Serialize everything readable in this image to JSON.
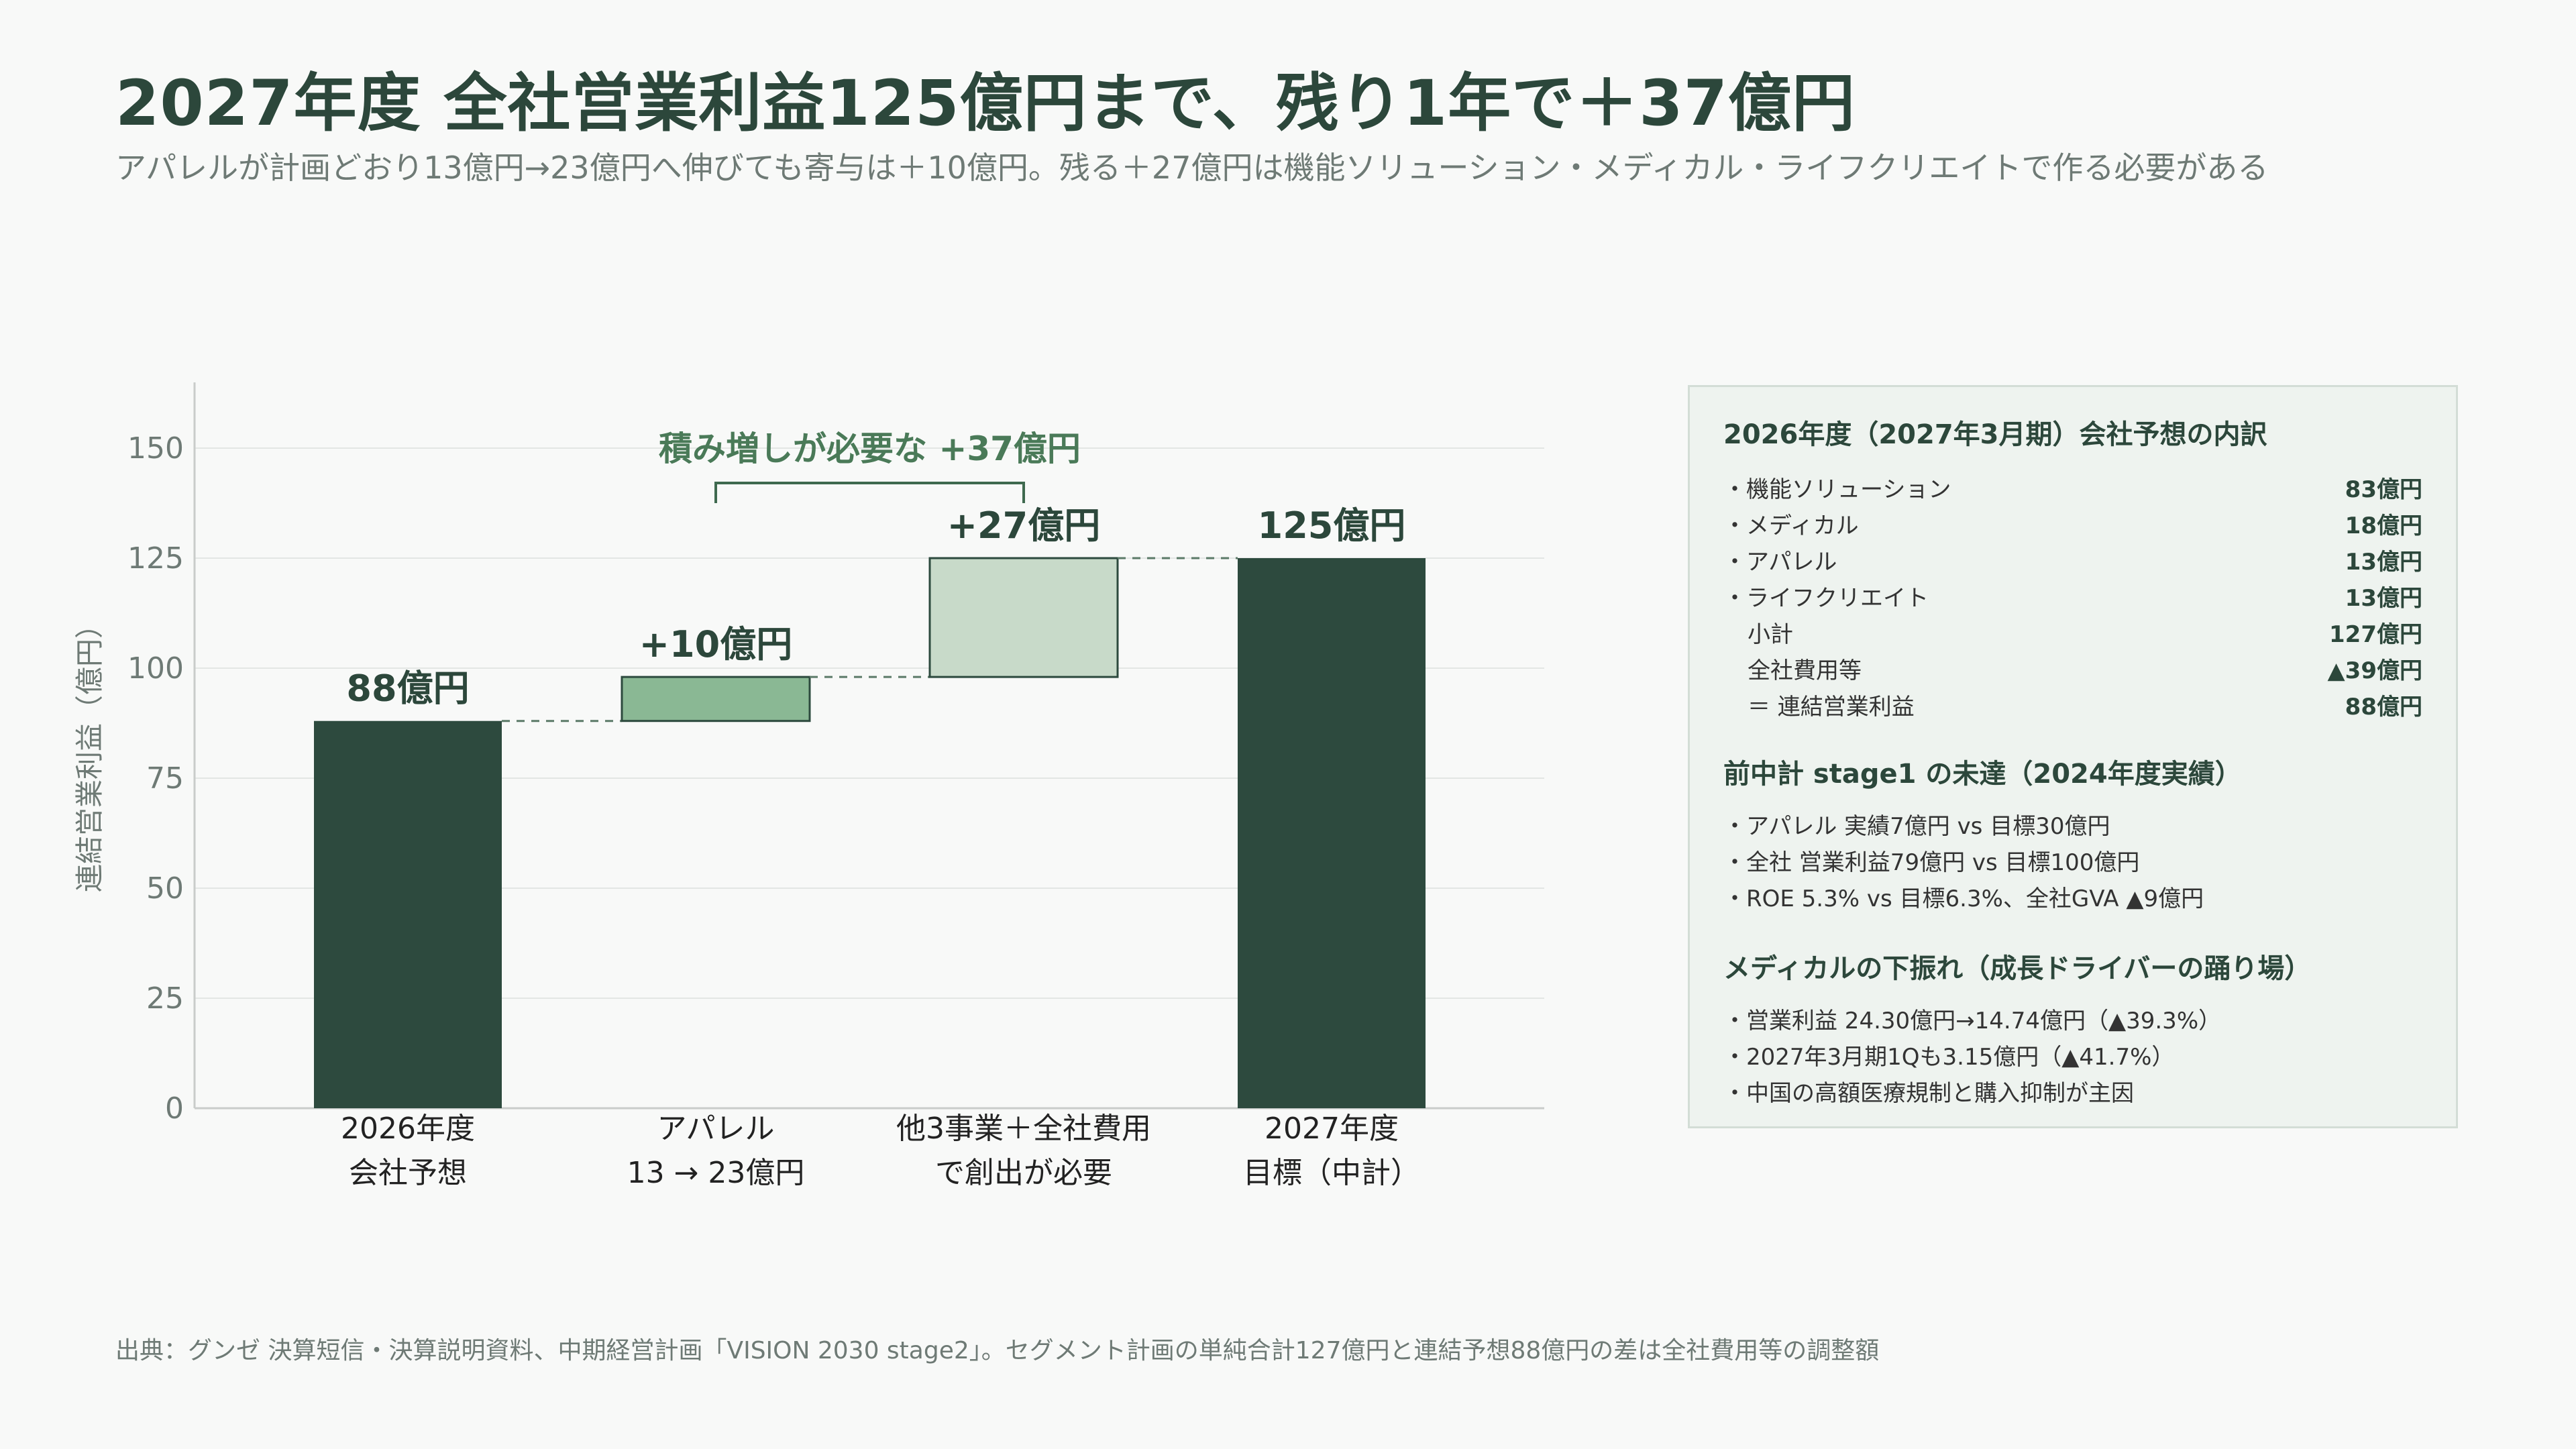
{
  "title": "2027年度 全社営業利益125億円まで、残り1年で＋37億円",
  "subtitle": "アパレルが計画どおり13億円→23億円へ伸びても寄与は＋10億円。残る＋27億円は機能ソリューション・メディカル・ライフクリエイトで作る必要がある",
  "chart_data": {
    "type": "waterfall",
    "ylabel": "連結営業利益（億円）",
    "ylim": [
      0,
      165
    ],
    "yticks": [
      "0",
      "25",
      "50",
      "75",
      "100",
      "125",
      "150"
    ],
    "grid": true,
    "bars": [
      {
        "category": [
          "2026年度",
          "会社予想"
        ],
        "start": 0,
        "end": 88,
        "label": "88億円",
        "kind": "total",
        "color": "#2d4a3e"
      },
      {
        "category": [
          "アパレル",
          "13 → 23億円"
        ],
        "start": 88,
        "end": 98,
        "label": "+10億円",
        "kind": "delta",
        "color": "#8ab894"
      },
      {
        "category": [
          "他3事業＋全社費用",
          "で創出が必要"
        ],
        "start": 98,
        "end": 125,
        "label": "+27億円",
        "kind": "delta",
        "color": "#c8dac9"
      },
      {
        "category": [
          "2027年度",
          "目標（中計）"
        ],
        "start": 0,
        "end": 125,
        "label": "125億円",
        "kind": "total",
        "color": "#2d4a3e"
      }
    ],
    "bracket_label": "積み増しが必要な +37億円"
  },
  "panel": {
    "section1": {
      "title": "2026年度（2027年3月期）会社予想の内訳",
      "rows": [
        {
          "label": "・機能ソリューション",
          "value": "83億円"
        },
        {
          "label": "・メディカル",
          "value": "18億円"
        },
        {
          "label": "・アパレル",
          "value": "13億円"
        },
        {
          "label": "・ライフクリエイト",
          "value": "13億円"
        },
        {
          "label": "小計",
          "value": "127億円"
        },
        {
          "label": "全社費用等",
          "value": "▲39億円"
        },
        {
          "label": "＝ 連結営業利益",
          "value": "88億円"
        }
      ]
    },
    "section2": {
      "title": "前中計 stage1 の未達（2024年度実績）",
      "items": [
        "・アパレル 実績7億円 vs 目標30億円",
        "・全社 営業利益79億円 vs 目標100億円",
        "・ROE 5.3% vs 目標6.3%、全社GVA ▲9億円"
      ]
    },
    "section3": {
      "title": "メディカルの下振れ（成長ドライバーの踊り場）",
      "items": [
        "・営業利益 24.30億円→14.74億円（▲39.3%）",
        "・2027年3月期1Qも3.15億円（▲41.7%）",
        "・中国の高額医療規制と購入抑制が主因"
      ]
    }
  },
  "source": "出典：グンゼ 決算短信・決算説明資料、中期経営計画「VISION 2030 stage2」。セグメント計画の単純合計127億円と連結予想88億円の差は全社費用等の調整額"
}
